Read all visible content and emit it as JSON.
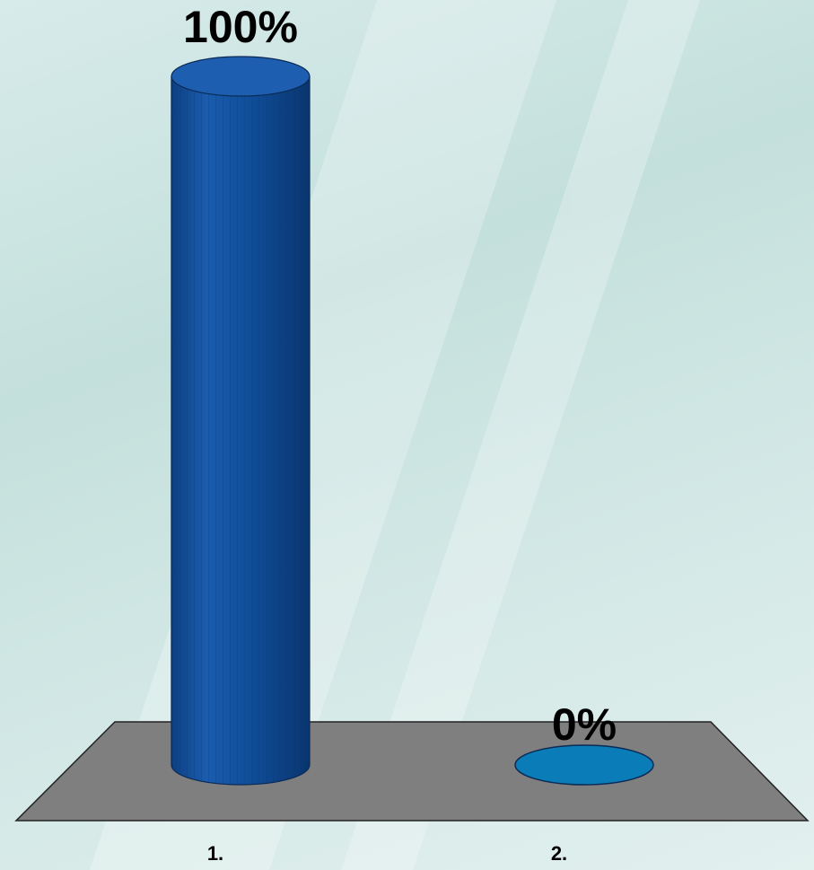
{
  "chart_data": {
    "type": "bar",
    "categories": [
      "1.",
      "2."
    ],
    "values": [
      100,
      0
    ],
    "data_labels": [
      "100%",
      "0%"
    ],
    "ylim": [
      0,
      100
    ],
    "colors": [
      "#0f4f9c",
      "#0a7db8"
    ],
    "floor_color": "#7f7f7f",
    "grid": false,
    "legend": "none"
  }
}
